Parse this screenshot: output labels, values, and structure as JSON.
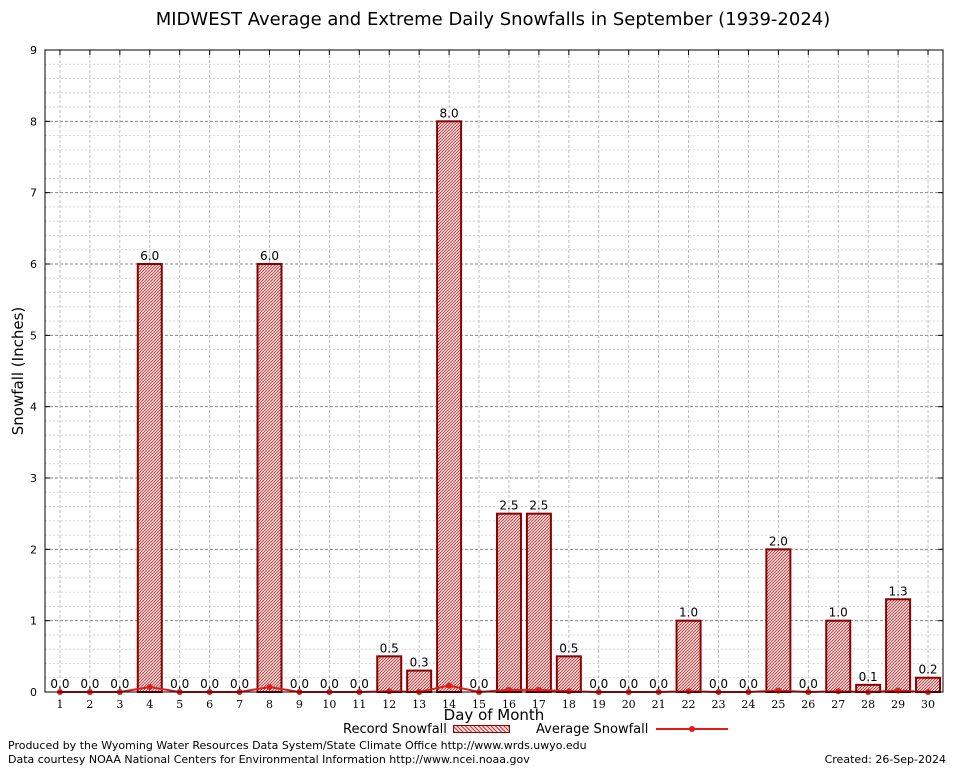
{
  "chart_data": {
    "type": "bar",
    "title": "MIDWEST Average and Extreme Daily Snowfalls in September (1939-2024)",
    "xlabel": "Day of Month",
    "ylabel": "Snowfall (Inches)",
    "ylim": [
      0,
      9
    ],
    "yticks": [
      0,
      1,
      2,
      3,
      4,
      5,
      6,
      7,
      8,
      9
    ],
    "grid": true,
    "legend_position": "bottom",
    "categories": [
      "1",
      "2",
      "3",
      "4",
      "5",
      "6",
      "7",
      "8",
      "9",
      "10",
      "11",
      "12",
      "13",
      "14",
      "15",
      "16",
      "17",
      "18",
      "19",
      "20",
      "21",
      "22",
      "23",
      "24",
      "25",
      "26",
      "27",
      "28",
      "29",
      "30"
    ],
    "series": [
      {
        "name": "Record Snowfall",
        "type": "bar",
        "color": "#8b0000",
        "values": [
          0.0,
          0.0,
          0.0,
          6.0,
          0.0,
          0.0,
          0.0,
          6.0,
          0.0,
          0.0,
          0.0,
          0.5,
          0.3,
          8.0,
          0.0,
          2.5,
          2.5,
          0.5,
          0.0,
          0.0,
          0.0,
          1.0,
          0.0,
          0.0,
          2.0,
          0.0,
          1.0,
          0.1,
          1.3,
          0.2
        ],
        "labels": [
          "0.0",
          "0.0",
          "0.0",
          "6.0",
          "0.0",
          "0.0",
          "0.0",
          "6.0",
          "0.0",
          "0.0",
          "0.0",
          "0.5",
          "0.3",
          "8.0",
          "0.0",
          "2.5",
          "2.5",
          "0.5",
          "0.0",
          "0.0",
          "0.0",
          "1.0",
          "0.0",
          "0.0",
          "2.0",
          "0.0",
          "1.0",
          "0.1",
          "1.3",
          "0.2"
        ]
      },
      {
        "name": "Average Snowfall",
        "type": "line",
        "color": "#e21a1a",
        "values": [
          0,
          0,
          0,
          0.07,
          0,
          0,
          0,
          0.07,
          0,
          0,
          0,
          0.01,
          0,
          0.09,
          0,
          0.03,
          0.03,
          0.01,
          0,
          0,
          0,
          0.01,
          0,
          0,
          0.02,
          0,
          0.01,
          0,
          0.02,
          0
        ]
      }
    ]
  },
  "footer": {
    "produced_by": "Produced by the Wyoming Water Resources Data System/State Climate Office http://www.wrds.uwyo.edu",
    "courtesy": "Data courtesy NOAA National Centers for Environmental Information http://www.ncei.noaa.gov",
    "created": "Created:  26-Sep-2024"
  }
}
